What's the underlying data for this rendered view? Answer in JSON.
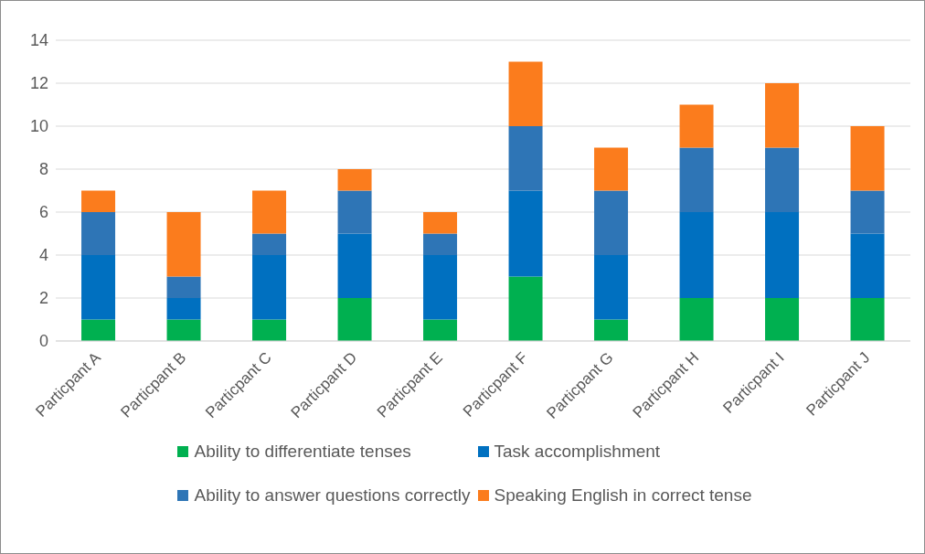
{
  "chart_data": {
    "type": "bar",
    "stacked": true,
    "categories": [
      "Particpant A",
      "Particpant B",
      "Particpant C",
      "Particpant D",
      "Particpant E",
      "Particpant F",
      "Particpant G",
      "Particpant H",
      "Particpant I",
      "Particpant J"
    ],
    "series": [
      {
        "name": "Ability to differentiate tenses",
        "color": "#00b050",
        "values": [
          1,
          1,
          1,
          2,
          1,
          3,
          1,
          2,
          2,
          2
        ]
      },
      {
        "name": "Task accomplishment",
        "color": "#0070c0",
        "values": [
          3,
          1,
          3,
          3,
          3,
          4,
          3,
          4,
          4,
          3
        ]
      },
      {
        "name": "Ability to answer questions correctly",
        "color": "#2e75b6",
        "values": [
          2,
          1,
          1,
          2,
          1,
          3,
          3,
          3,
          3,
          2
        ]
      },
      {
        "name": "Speaking English in correct tense",
        "color": "#fb7c1d",
        "values": [
          1,
          3,
          2,
          1,
          1,
          3,
          2,
          2,
          3,
          3
        ]
      }
    ],
    "ylim": [
      0,
      14
    ],
    "yticks": [
      0,
      2,
      4,
      6,
      8,
      10,
      12,
      14
    ],
    "grid": "y",
    "legend": "bottom"
  }
}
